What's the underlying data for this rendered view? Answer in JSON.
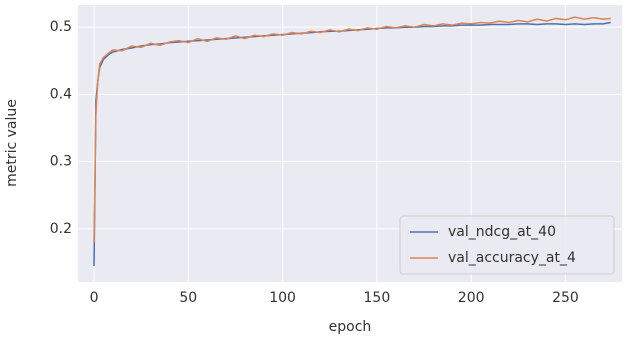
{
  "chart_data": {
    "type": "line",
    "xlabel": "epoch",
    "ylabel": "metric value",
    "x": [
      0,
      1,
      2,
      3,
      5,
      8,
      10,
      15,
      20,
      25,
      30,
      35,
      40,
      45,
      50,
      55,
      60,
      65,
      70,
      75,
      80,
      85,
      90,
      95,
      100,
      105,
      110,
      115,
      120,
      125,
      130,
      135,
      140,
      145,
      150,
      155,
      160,
      165,
      170,
      175,
      180,
      185,
      190,
      195,
      200,
      205,
      210,
      215,
      220,
      225,
      230,
      235,
      240,
      245,
      250,
      255,
      260,
      265,
      270,
      274
    ],
    "series": [
      {
        "name": "val_ndcg_at_40",
        "color": "#4c72b0",
        "values": [
          0.145,
          0.39,
          0.42,
          0.44,
          0.452,
          0.46,
          0.463,
          0.467,
          0.469,
          0.472,
          0.474,
          0.475,
          0.477,
          0.478,
          0.479,
          0.48,
          0.481,
          0.482,
          0.483,
          0.484,
          0.485,
          0.486,
          0.487,
          0.488,
          0.489,
          0.49,
          0.491,
          0.492,
          0.493,
          0.494,
          0.494,
          0.495,
          0.496,
          0.497,
          0.498,
          0.499,
          0.499,
          0.5,
          0.5,
          0.501,
          0.501,
          0.502,
          0.502,
          0.503,
          0.503,
          0.503,
          0.504,
          0.504,
          0.504,
          0.505,
          0.505,
          0.504,
          0.505,
          0.505,
          0.504,
          0.505,
          0.504,
          0.505,
          0.505,
          0.507
        ]
      },
      {
        "name": "val_accuracy_at_4",
        "color": "#dd8452",
        "values": [
          0.18,
          0.37,
          0.42,
          0.445,
          0.455,
          0.462,
          0.466,
          0.465,
          0.472,
          0.47,
          0.476,
          0.473,
          0.478,
          0.48,
          0.477,
          0.483,
          0.479,
          0.484,
          0.482,
          0.487,
          0.483,
          0.488,
          0.486,
          0.49,
          0.488,
          0.492,
          0.49,
          0.494,
          0.492,
          0.496,
          0.493,
          0.497,
          0.495,
          0.499,
          0.497,
          0.501,
          0.499,
          0.502,
          0.5,
          0.504,
          0.502,
          0.505,
          0.503,
          0.506,
          0.505,
          0.507,
          0.506,
          0.509,
          0.507,
          0.51,
          0.508,
          0.512,
          0.509,
          0.513,
          0.511,
          0.515,
          0.512,
          0.514,
          0.512,
          0.513
        ]
      }
    ],
    "xlim": [
      -8.5,
      280
    ],
    "ylim": [
      0.121,
      0.533
    ],
    "xticks": [
      0,
      50,
      100,
      150,
      200,
      250
    ],
    "yticks": [
      0.2,
      0.3,
      0.4,
      0.5
    ],
    "grid": true,
    "legend": "lower right"
  }
}
